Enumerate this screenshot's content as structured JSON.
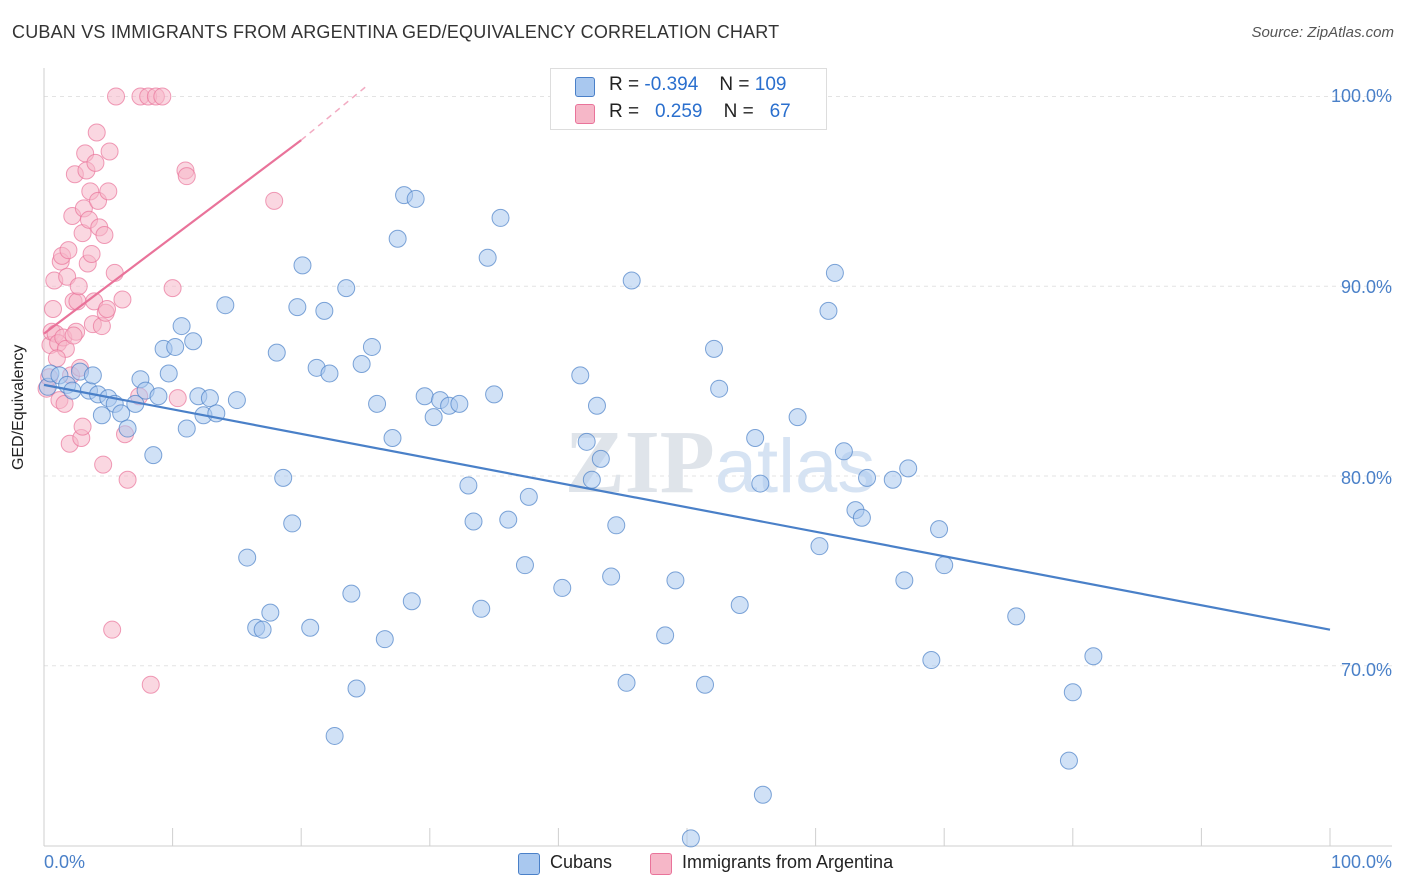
{
  "header": {
    "title": "CUBAN VS IMMIGRANTS FROM ARGENTINA GED/EQUIVALENCY CORRELATION CHART",
    "source": "Source: ZipAtlas.com"
  },
  "legend": {
    "rows": [
      {
        "r_label": "R =",
        "r_value": "-0.394",
        "n_label": "N =",
        "n_value": "109",
        "color": "#a9c8ef"
      },
      {
        "r_label": "R =",
        "r_value": "0.259",
        "n_label": "N =",
        "n_value": "67",
        "color": "#f6b7c8"
      }
    ]
  },
  "bottom_legend": [
    {
      "label": "Cubans",
      "color": "#a9c8ef"
    },
    {
      "label": "Immigrants from Argentina",
      "color": "#f6b7c8"
    }
  ],
  "chart_data": {
    "type": "scatter",
    "title": "CUBAN VS IMMIGRANTS FROM ARGENTINA GED/EQUIVALENCY CORRELATION CHART",
    "xlabel": "",
    "ylabel": "GED/Equivalency",
    "xlim": [
      0,
      100
    ],
    "ylim": [
      60.5,
      101.5
    ],
    "x_tick_labels": [
      "0.0%",
      "100.0%"
    ],
    "y_ticks": [
      70,
      80,
      90,
      100
    ],
    "y_tick_labels": [
      "70.0%",
      "80.0%",
      "90.0%",
      "100.0%"
    ],
    "grid": true,
    "legend_position": "top-center",
    "watermark": "ZIPatlas",
    "series": [
      {
        "name": "Cubans",
        "color": "#4a80c8",
        "fill": "#a9c8ef",
        "trend": {
          "x0": 0,
          "y0": 84.8,
          "x1": 100,
          "y1": 71.9
        },
        "points": [
          [
            0.3,
            84.7
          ],
          [
            0.5,
            85.4
          ],
          [
            1.2,
            85.3
          ],
          [
            1.8,
            84.8
          ],
          [
            2.2,
            84.5
          ],
          [
            2.8,
            85.5
          ],
          [
            3.5,
            84.5
          ],
          [
            3.8,
            85.3
          ],
          [
            4.2,
            84.3
          ],
          [
            4.5,
            83.2
          ],
          [
            5.0,
            84.1
          ],
          [
            5.5,
            83.8
          ],
          [
            6.0,
            83.3
          ],
          [
            6.5,
            82.5
          ],
          [
            7.1,
            83.8
          ],
          [
            7.5,
            85.1
          ],
          [
            7.9,
            84.5
          ],
          [
            8.5,
            81.1
          ],
          [
            8.9,
            84.2
          ],
          [
            9.3,
            86.7
          ],
          [
            9.7,
            85.4
          ],
          [
            10.2,
            86.8
          ],
          [
            10.7,
            87.9
          ],
          [
            11.1,
            82.5
          ],
          [
            11.6,
            87.1
          ],
          [
            12.0,
            84.2
          ],
          [
            12.4,
            83.2
          ],
          [
            12.9,
            84.1
          ],
          [
            13.4,
            83.3
          ],
          [
            14.1,
            89.0
          ],
          [
            15.0,
            84.0
          ],
          [
            15.8,
            75.7
          ],
          [
            16.5,
            72.0
          ],
          [
            17.0,
            71.9
          ],
          [
            17.6,
            72.8
          ],
          [
            18.1,
            86.5
          ],
          [
            18.6,
            79.9
          ],
          [
            19.3,
            77.5
          ],
          [
            19.7,
            88.9
          ],
          [
            20.1,
            91.1
          ],
          [
            20.7,
            72.0
          ],
          [
            21.2,
            85.7
          ],
          [
            21.8,
            88.7
          ],
          [
            22.2,
            85.4
          ],
          [
            22.6,
            66.3
          ],
          [
            23.5,
            89.9
          ],
          [
            23.9,
            73.8
          ],
          [
            24.3,
            68.8
          ],
          [
            24.7,
            85.9
          ],
          [
            25.5,
            86.8
          ],
          [
            25.9,
            83.8
          ],
          [
            26.5,
            71.4
          ],
          [
            27.1,
            82.0
          ],
          [
            27.5,
            92.5
          ],
          [
            28.0,
            94.8
          ],
          [
            28.6,
            73.4
          ],
          [
            28.9,
            94.6
          ],
          [
            29.6,
            84.2
          ],
          [
            30.3,
            83.1
          ],
          [
            30.8,
            84.0
          ],
          [
            31.5,
            83.7
          ],
          [
            32.3,
            83.8
          ],
          [
            33.0,
            79.5
          ],
          [
            33.4,
            77.6
          ],
          [
            34.0,
            73.0
          ],
          [
            34.5,
            91.5
          ],
          [
            35.0,
            84.3
          ],
          [
            35.5,
            93.6
          ],
          [
            36.1,
            77.7
          ],
          [
            37.4,
            75.3
          ],
          [
            37.7,
            78.9
          ],
          [
            40.3,
            74.1
          ],
          [
            41.7,
            85.3
          ],
          [
            42.2,
            81.8
          ],
          [
            42.6,
            79.8
          ],
          [
            43.0,
            83.7
          ],
          [
            43.3,
            80.9
          ],
          [
            44.1,
            74.7
          ],
          [
            44.5,
            77.4
          ],
          [
            45.3,
            69.1
          ],
          [
            45.7,
            90.3
          ],
          [
            48.3,
            71.6
          ],
          [
            49.1,
            74.5
          ],
          [
            50.3,
            60.9
          ],
          [
            51.4,
            69.0
          ],
          [
            52.1,
            86.7
          ],
          [
            52.5,
            84.6
          ],
          [
            54.1,
            73.2
          ],
          [
            55.3,
            82.0
          ],
          [
            55.7,
            79.6
          ],
          [
            55.9,
            63.2
          ],
          [
            58.6,
            83.1
          ],
          [
            60.3,
            76.3
          ],
          [
            61.0,
            88.7
          ],
          [
            61.5,
            90.7
          ],
          [
            62.2,
            81.3
          ],
          [
            63.1,
            78.2
          ],
          [
            63.6,
            77.8
          ],
          [
            64.0,
            79.9
          ],
          [
            66.0,
            79.8
          ],
          [
            66.9,
            74.5
          ],
          [
            67.2,
            80.4
          ],
          [
            69.0,
            70.3
          ],
          [
            69.6,
            77.2
          ],
          [
            70.0,
            75.3
          ],
          [
            75.6,
            72.6
          ],
          [
            79.7,
            65.0
          ],
          [
            80.0,
            68.6
          ],
          [
            81.6,
            70.5
          ]
        ]
      },
      {
        "name": "Immigrants from Argentina",
        "color": "#e9739a",
        "fill": "#f6b7c8",
        "trend": {
          "x0": 0,
          "y0": 87.5,
          "x1": 20,
          "y1": 97.7
        },
        "trend_dashed_to": {
          "x1": 25,
          "y1": 100.5
        },
        "points": [
          [
            0.2,
            84.6
          ],
          [
            0.4,
            85.2
          ],
          [
            0.5,
            86.9
          ],
          [
            0.6,
            87.6
          ],
          [
            0.7,
            88.8
          ],
          [
            0.8,
            90.3
          ],
          [
            0.9,
            87.5
          ],
          [
            1.1,
            87.0
          ],
          [
            1.2,
            84.0
          ],
          [
            1.3,
            91.3
          ],
          [
            1.4,
            91.6
          ],
          [
            1.5,
            87.3
          ],
          [
            1.6,
            83.8
          ],
          [
            1.7,
            86.7
          ],
          [
            1.8,
            90.5
          ],
          [
            1.9,
            91.9
          ],
          [
            2.0,
            81.7
          ],
          [
            2.1,
            85.3
          ],
          [
            2.2,
            93.7
          ],
          [
            2.3,
            89.2
          ],
          [
            2.4,
            95.9
          ],
          [
            2.5,
            87.6
          ],
          [
            2.6,
            89.2
          ],
          [
            2.7,
            90.0
          ],
          [
            2.8,
            85.7
          ],
          [
            2.9,
            82.0
          ],
          [
            3.0,
            92.8
          ],
          [
            3.1,
            94.1
          ],
          [
            3.2,
            97.0
          ],
          [
            3.3,
            96.1
          ],
          [
            3.4,
            91.2
          ],
          [
            3.5,
            93.5
          ],
          [
            3.6,
            95.0
          ],
          [
            3.7,
            91.7
          ],
          [
            3.8,
            88.0
          ],
          [
            3.9,
            89.2
          ],
          [
            4.0,
            96.5
          ],
          [
            4.1,
            98.1
          ],
          [
            4.2,
            94.5
          ],
          [
            4.3,
            93.1
          ],
          [
            4.5,
            87.9
          ],
          [
            4.6,
            80.6
          ],
          [
            4.7,
            92.7
          ],
          [
            4.8,
            88.6
          ],
          [
            4.9,
            88.8
          ],
          [
            5.0,
            95.0
          ],
          [
            5.1,
            97.1
          ],
          [
            5.3,
            71.9
          ],
          [
            5.5,
            90.7
          ],
          [
            5.6,
            100.0
          ],
          [
            6.1,
            89.3
          ],
          [
            6.3,
            82.2
          ],
          [
            6.5,
            79.8
          ],
          [
            7.4,
            84.2
          ],
          [
            7.5,
            100.0
          ],
          [
            8.1,
            100.0
          ],
          [
            8.3,
            69.0
          ],
          [
            8.7,
            100.0
          ],
          [
            9.2,
            100.0
          ],
          [
            10.0,
            89.9
          ],
          [
            10.4,
            84.1
          ],
          [
            11.0,
            96.1
          ],
          [
            11.1,
            95.8
          ],
          [
            17.9,
            94.5
          ],
          [
            1.0,
            86.2
          ],
          [
            2.3,
            87.4
          ],
          [
            3.0,
            82.6
          ]
        ]
      }
    ]
  }
}
